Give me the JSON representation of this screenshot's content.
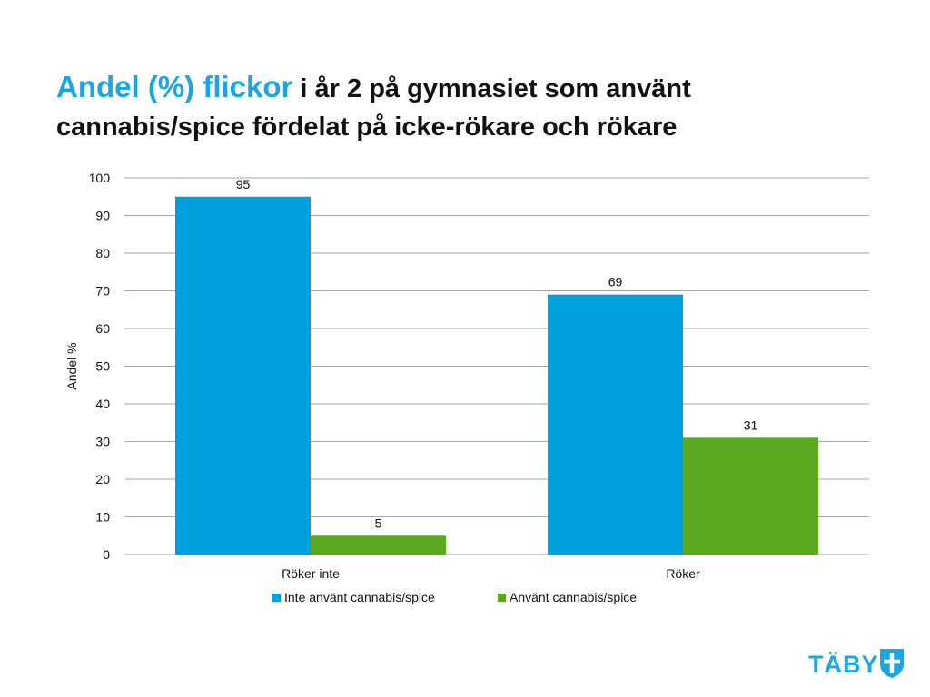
{
  "title": {
    "accent_text": "Andel (%) flickor",
    "rest_text": " i år 2 på gymnasiet som använt cannabis/spice fördelat på icke-rökare och rökare",
    "accent_color": "#1aa7e0"
  },
  "chart_data": {
    "type": "bar",
    "title": "",
    "xlabel": "",
    "ylabel": "Andel %",
    "ylim": [
      0,
      100
    ],
    "yticks": [
      0,
      10,
      20,
      30,
      40,
      50,
      60,
      70,
      80,
      90,
      100
    ],
    "grid": true,
    "legend_position": "bottom",
    "categories": [
      "Röker inte",
      "Röker"
    ],
    "series": [
      {
        "name": "Inte använt cannabis/spice",
        "color": "#00a0dc",
        "values": [
          95,
          69
        ]
      },
      {
        "name": "Använt cannabis/spice",
        "color": "#5aa81f",
        "values": [
          5,
          31
        ]
      }
    ]
  },
  "logo": {
    "text": "TÄBY",
    "color": "#1aa7e0",
    "icon": "shield-cross-icon"
  }
}
